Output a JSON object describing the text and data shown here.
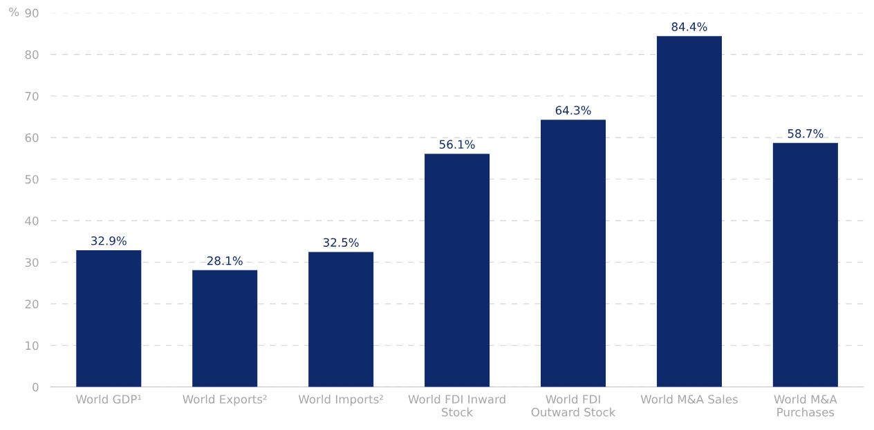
{
  "chart_data": {
    "type": "bar",
    "ylabel": "%",
    "categories": [
      "World GDP¹",
      "World Exports²",
      "World Imports²",
      "World FDI Inward\nStock",
      "World FDI\nOutward Stock",
      "World M&A Sales",
      "World M&A\nPurchases"
    ],
    "values": [
      32.9,
      28.1,
      32.5,
      56.1,
      64.3,
      84.4,
      58.7
    ],
    "value_labels": [
      "32.9%",
      "28.1%",
      "32.5%",
      "56.1%",
      "64.3%",
      "84.4%",
      "58.7%"
    ],
    "color": "#0f2a6b",
    "ylim": [
      0,
      90
    ],
    "yticks": [
      0,
      10,
      20,
      30,
      40,
      50,
      60,
      70,
      80,
      90
    ],
    "grid": "y",
    "legend": false
  }
}
